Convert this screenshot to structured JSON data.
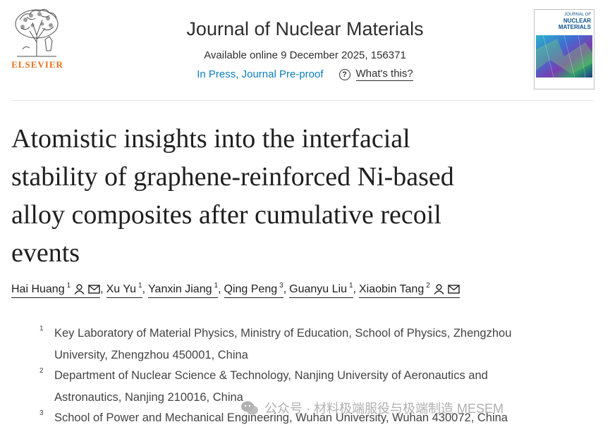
{
  "header": {
    "publisher": "ELSEVIER",
    "journal_title": "Journal of Nuclear Materials",
    "available": "Available online 9 December 2025, 156371",
    "in_press": "In Press, Journal Pre-proof",
    "whats_this": "What's this?",
    "cover_line1": "JOURNAL OF",
    "cover_line2": "NUCLEAR MATERIALS"
  },
  "article": {
    "title_lines": [
      "Atomistic insights into the interfacial",
      "stability of graphene-reinforced Ni-based",
      "alloy composites after cumulative recoil",
      "events"
    ]
  },
  "authors": [
    {
      "name": "Hai Huang",
      "aff": "1",
      "icons": true
    },
    {
      "name": "Xu Yu",
      "aff": "1",
      "icons": false
    },
    {
      "name": "Yanxin Jiang",
      "aff": "1",
      "icons": false
    },
    {
      "name": "Qing Peng",
      "aff": "3",
      "icons": false
    },
    {
      "name": "Guanyu Liu",
      "aff": "1",
      "icons": false
    },
    {
      "name": "Xiaobin Tang",
      "aff": "2",
      "icons": true
    }
  ],
  "affiliations": [
    {
      "num": "1",
      "lines": [
        "Key Laboratory of Material Physics, Ministry of Education, School of Physics, Zhengzhou",
        "University, Zhengzhou 450001, China"
      ]
    },
    {
      "num": "2",
      "lines": [
        "Department of Nuclear Science & Technology, Nanjing University of Aeronautics and",
        "Astronautics, Nanjing 210016, China"
      ]
    },
    {
      "num": "3",
      "lines": [
        "School of Power and Mechanical Engineering, Wuhan University, Wuhan 430072, China"
      ]
    }
  ],
  "watermark": "公众号 · 材料极端服役与极端制造 MESEM",
  "colors": {
    "publisher": "#e9711c",
    "link": "#0c7dbb"
  }
}
